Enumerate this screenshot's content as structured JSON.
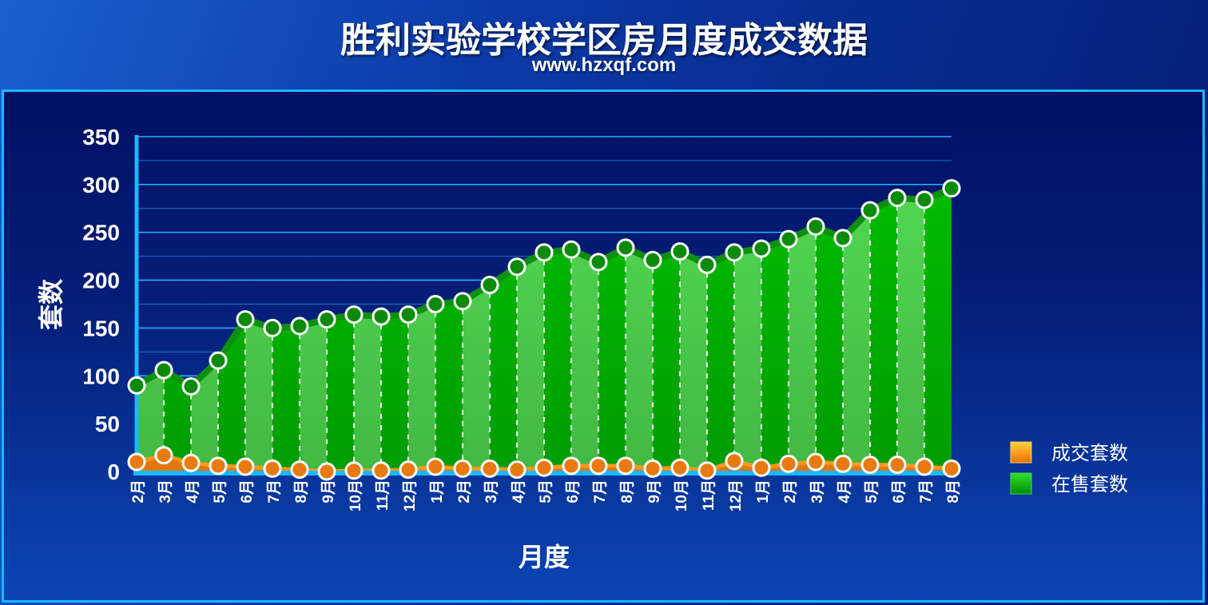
{
  "title": "胜利实验学校学区房月度成交数据",
  "subtitle": "www.hzxqf.com",
  "chart_data": {
    "type": "area",
    "ylabel": "套数",
    "xlabel": "月度",
    "ylim": [
      0,
      350
    ],
    "yticks": [
      "0",
      "50",
      "100",
      "150",
      "200",
      "250",
      "300",
      "350"
    ],
    "categories": [
      "2月",
      "3月",
      "4月",
      "5月",
      "6月",
      "7月",
      "8月",
      "9月",
      "10月",
      "11月",
      "12月",
      "1月",
      "2月",
      "3月",
      "4月",
      "5月",
      "6月",
      "7月",
      "8月",
      "9月",
      "10月",
      "11月",
      "12月",
      "1月",
      "2月",
      "3月",
      "4月",
      "5月",
      "6月",
      "7月",
      "8月"
    ],
    "series": [
      {
        "name": "成交套数",
        "color": "#f08a10",
        "values": [
          10,
          17,
          9,
          6,
          5,
          3,
          2,
          0,
          1,
          1,
          2,
          5,
          3,
          3,
          2,
          4,
          6,
          6,
          6,
          3,
          4,
          1,
          11,
          4,
          8,
          10,
          8,
          7,
          7,
          5,
          3
        ]
      },
      {
        "name": "在售套数",
        "color": "#00c000",
        "values": [
          90,
          106,
          89,
          116,
          159,
          150,
          152,
          159,
          164,
          162,
          164,
          175,
          178,
          195,
          214,
          229,
          232,
          219,
          234,
          221,
          230,
          216,
          229,
          233,
          243,
          256,
          244,
          273,
          286,
          284,
          296
        ]
      }
    ],
    "legend_position": "right",
    "grid": true
  }
}
